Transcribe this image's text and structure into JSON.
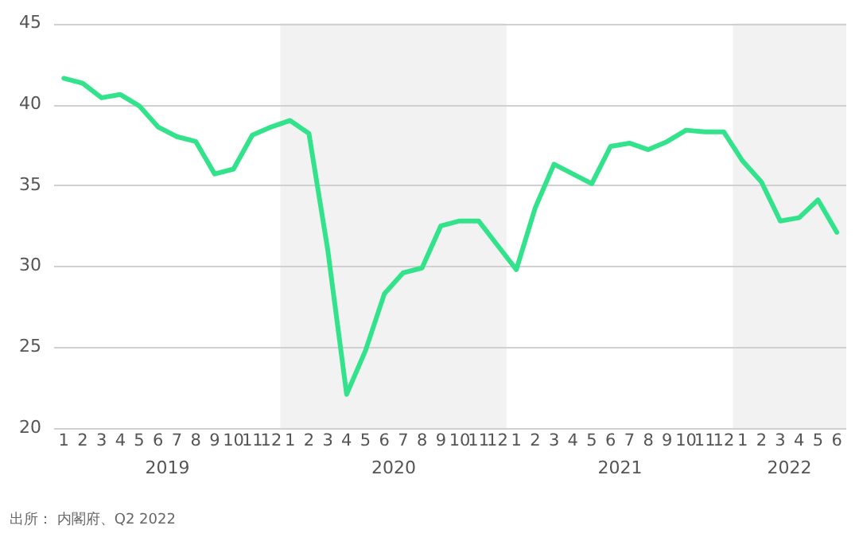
{
  "chart_data": {
    "type": "line",
    "x": [
      "2019-01",
      "2019-02",
      "2019-03",
      "2019-04",
      "2019-05",
      "2019-06",
      "2019-07",
      "2019-08",
      "2019-09",
      "2019-10",
      "2019-11",
      "2019-12",
      "2020-01",
      "2020-02",
      "2020-03",
      "2020-04",
      "2020-05",
      "2020-06",
      "2020-07",
      "2020-08",
      "2020-09",
      "2020-10",
      "2020-11",
      "2020-12",
      "2021-01",
      "2021-02",
      "2021-03",
      "2021-04",
      "2021-05",
      "2021-06",
      "2021-07",
      "2021-08",
      "2021-09",
      "2021-10",
      "2021-11",
      "2021-12",
      "2022-01",
      "2022-02",
      "2022-03",
      "2022-04",
      "2022-05",
      "2022-06"
    ],
    "series": [
      {
        "color": "#33e38c",
        "values": [
          41.6,
          41.3,
          40.4,
          40.6,
          39.9,
          38.6,
          38.0,
          37.7,
          35.7,
          36.0,
          38.1,
          38.6,
          39.0,
          38.2,
          31.0,
          22.1,
          24.8,
          28.3,
          29.6,
          29.9,
          32.5,
          32.8,
          32.8,
          31.3,
          29.8,
          33.6,
          36.3,
          35.7,
          35.1,
          37.4,
          37.6,
          37.2,
          37.7,
          38.4,
          38.3,
          38.3,
          36.5,
          35.2,
          32.8,
          33.0,
          34.1,
          32.1
        ]
      }
    ],
    "xlim": [
      "2018-12-16",
      "2022-06-16"
    ],
    "xticks": [
      {
        "value": "2019-01",
        "label": "1"
      },
      {
        "value": "2019-02",
        "label": "2"
      },
      {
        "value": "2019-03",
        "label": "3"
      },
      {
        "value": "2019-04",
        "label": "4"
      },
      {
        "value": "2019-05",
        "label": "5"
      },
      {
        "value": "2019-06",
        "label": "6"
      },
      {
        "value": "2019-07",
        "label": "7"
      },
      {
        "value": "2019-08",
        "label": "8"
      },
      {
        "value": "2019-09",
        "label": "9"
      },
      {
        "value": "2019-10",
        "label": "10"
      },
      {
        "value": "2019-11",
        "label": "11"
      },
      {
        "value": "2019-12",
        "label": "12"
      },
      {
        "value": "2020-01",
        "label": "1"
      },
      {
        "value": "2020-02",
        "label": "2"
      },
      {
        "value": "2020-03",
        "label": "3"
      },
      {
        "value": "2020-04",
        "label": "4"
      },
      {
        "value": "2020-05",
        "label": "5"
      },
      {
        "value": "2020-06",
        "label": "6"
      },
      {
        "value": "2020-07",
        "label": "7"
      },
      {
        "value": "2020-08",
        "label": "8"
      },
      {
        "value": "2020-09",
        "label": "9"
      },
      {
        "value": "2020-10",
        "label": "10"
      },
      {
        "value": "2020-11",
        "label": "11"
      },
      {
        "value": "2020-12",
        "label": "12"
      },
      {
        "value": "2021-01",
        "label": "1"
      },
      {
        "value": "2021-02",
        "label": "2"
      },
      {
        "value": "2021-03",
        "label": "3"
      },
      {
        "value": "2021-04",
        "label": "4"
      },
      {
        "value": "2021-05",
        "label": "5"
      },
      {
        "value": "2021-06",
        "label": "6"
      },
      {
        "value": "2021-07",
        "label": "7"
      },
      {
        "value": "2021-08",
        "label": "8"
      },
      {
        "value": "2021-09",
        "label": "9"
      },
      {
        "value": "2021-10",
        "label": "10"
      },
      {
        "value": "2021-11",
        "label": "11"
      },
      {
        "value": "2021-12",
        "label": "12"
      },
      {
        "value": "2022-01",
        "label": "1"
      },
      {
        "value": "2022-02",
        "label": "2"
      },
      {
        "value": "2022-03",
        "label": "3"
      },
      {
        "value": "2022-04",
        "label": "4"
      },
      {
        "value": "2022-05",
        "label": "5"
      },
      {
        "value": "2022-06",
        "label": "6"
      }
    ],
    "ylim": [
      20,
      45
    ],
    "yticks": [
      20,
      25,
      30,
      35,
      40,
      45
    ],
    "grid": "y",
    "legend": false,
    "marker": "none",
    "line_style": "solid",
    "bands": [
      {
        "axis": "x",
        "from": "2019-12-16",
        "to": "2020-12-16",
        "color": "#f2f2f2"
      },
      {
        "axis": "x",
        "from": "2021-12-16",
        "to": "2022-06-16",
        "color": "#f2f2f2"
      }
    ],
    "x2lim": [
      "2018-12-16",
      "2022-06-16"
    ],
    "x2ticks": [
      {
        "value": "2019-06-16",
        "label": "2019"
      },
      {
        "value": "2020-06-16",
        "label": "2020"
      },
      {
        "value": "2021-06-16",
        "label": "2021"
      },
      {
        "value": "2022-03-16",
        "label": "2022"
      }
    ],
    "annotations": [
      "出所： 内閣府、Q2 2022"
    ]
  }
}
